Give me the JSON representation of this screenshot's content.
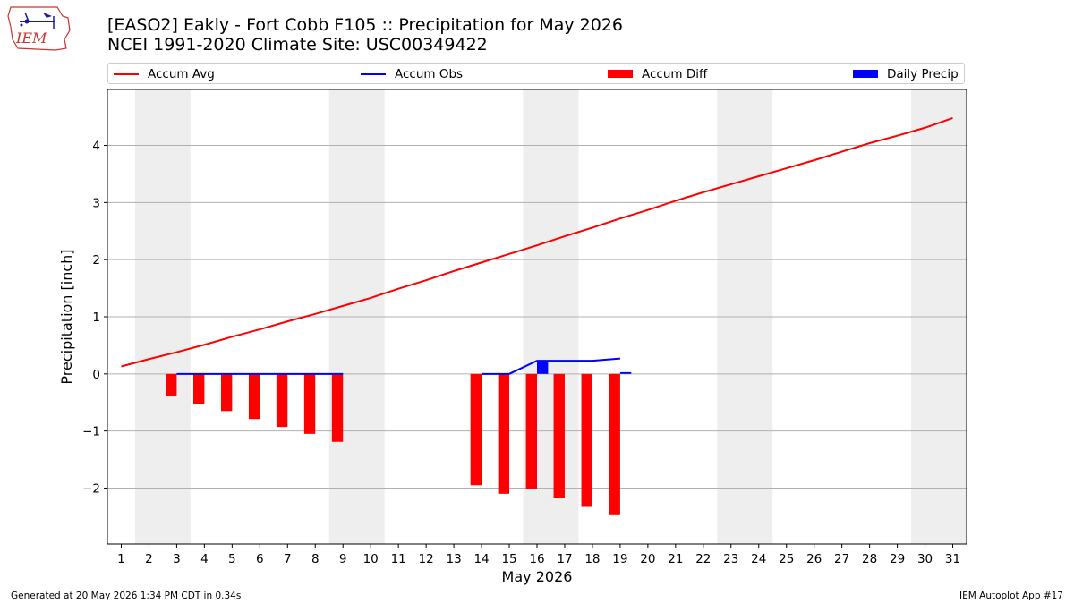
{
  "logo": {
    "text": "IEM"
  },
  "title": {
    "line1": "[EASO2] Eakly - Fort Cobb F105 :: Precipitation for May 2026",
    "line2": "NCEI 1991-2020 Climate Site: USC00349422"
  },
  "legend": [
    {
      "label": "Accum Avg",
      "kind": "line",
      "color": "#ff0000"
    },
    {
      "label": "Accum Obs",
      "kind": "line",
      "color": "#0000ff"
    },
    {
      "label": "Accum Diff",
      "kind": "bar",
      "color": "#ff0000"
    },
    {
      "label": "Daily Precip",
      "kind": "bar",
      "color": "#0000ff"
    }
  ],
  "footer": {
    "left": "Generated at 20 May 2026 1:34 PM CDT in 0.34s",
    "right": "IEM Autoplot App #17"
  },
  "chart_data": {
    "type": "bar",
    "xlabel": "May 2026",
    "ylabel": "Precipitation [inch]",
    "xlim": [
      0.5,
      31.5
    ],
    "ylim": [
      -2.98,
      4.98
    ],
    "x_ticks": [
      1,
      2,
      3,
      4,
      5,
      6,
      7,
      8,
      9,
      10,
      11,
      12,
      13,
      14,
      15,
      16,
      17,
      18,
      19,
      20,
      21,
      22,
      23,
      24,
      25,
      26,
      27,
      28,
      29,
      30,
      31
    ],
    "y_ticks": [
      {
        "value": -2,
        "label": "−2"
      },
      {
        "value": -1,
        "label": "−1"
      },
      {
        "value": 0,
        "label": "0"
      },
      {
        "value": 1,
        "label": "1"
      },
      {
        "value": 2,
        "label": "2"
      },
      {
        "value": 3,
        "label": "3"
      },
      {
        "value": 4,
        "label": "4"
      }
    ],
    "grid": "horizontal",
    "legend_position": "top",
    "weekend_shading": [
      [
        1.5,
        3.5
      ],
      [
        8.5,
        10.5
      ],
      [
        15.5,
        17.5
      ],
      [
        22.5,
        24.5
      ],
      [
        29.5,
        31.5
      ]
    ],
    "weekend_color": "#eeeeee",
    "series": [
      {
        "name": "Accum Avg",
        "kind": "line",
        "color": "#ff0000",
        "x": [
          1,
          2,
          3,
          4,
          5,
          6,
          7,
          8,
          9,
          10,
          11,
          12,
          13,
          14,
          15,
          16,
          17,
          18,
          19,
          20,
          21,
          22,
          23,
          24,
          25,
          26,
          27,
          28,
          29,
          30,
          31
        ],
        "values": [
          0.13,
          0.26,
          0.38,
          0.51,
          0.65,
          0.78,
          0.92,
          1.05,
          1.19,
          1.33,
          1.49,
          1.64,
          1.8,
          1.95,
          2.1,
          2.25,
          2.41,
          2.56,
          2.72,
          2.87,
          3.03,
          3.18,
          3.32,
          3.46,
          3.6,
          3.74,
          3.89,
          4.04,
          4.17,
          4.31,
          4.48
        ]
      },
      {
        "name": "Accum Obs",
        "kind": "line",
        "color": "#0000ff",
        "segments": [
          {
            "x": [
              3,
              4,
              5,
              6,
              7,
              8,
              9
            ],
            "values": [
              0,
              0,
              0,
              0,
              0,
              0,
              0
            ]
          },
          {
            "x": [
              14,
              15,
              16,
              17,
              18,
              19
            ],
            "values": [
              0,
              0,
              0.23,
              0.23,
              0.23,
              0.27
            ]
          }
        ]
      },
      {
        "name": "Accum Diff",
        "kind": "bar",
        "color": "#ff0000",
        "x": [
          3,
          4,
          5,
          6,
          7,
          8,
          9,
          14,
          15,
          16,
          17,
          18,
          19
        ],
        "values": [
          -0.38,
          -0.53,
          -0.65,
          -0.79,
          -0.93,
          -1.05,
          -1.19,
          -1.95,
          -2.1,
          -2.02,
          -2.18,
          -2.33,
          -2.46
        ]
      },
      {
        "name": "Daily Precip",
        "kind": "bar",
        "color": "#0000ff",
        "x": [
          16,
          19
        ],
        "values": [
          0.23,
          0.03
        ]
      }
    ]
  }
}
